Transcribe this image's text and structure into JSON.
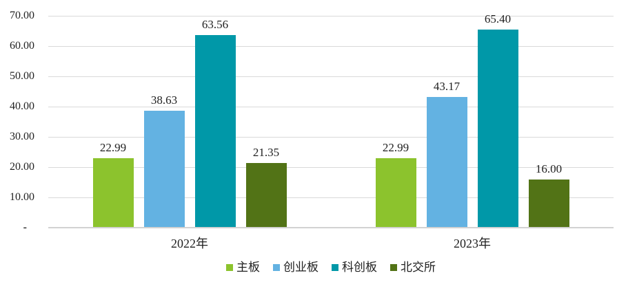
{
  "chart_data": {
    "type": "bar",
    "title": "",
    "xlabel": "",
    "ylabel": "",
    "categories": [
      "2022年",
      "2023年"
    ],
    "series": [
      {
        "name": "主板",
        "color": "#8CC32D",
        "values": [
          22.99,
          22.99
        ],
        "labels": [
          "22.99",
          "22.99"
        ]
      },
      {
        "name": "创业板",
        "color": "#63B2E2",
        "values": [
          38.63,
          43.17
        ],
        "labels": [
          "38.63",
          "43.17"
        ]
      },
      {
        "name": "科创板",
        "color": "#0098A8",
        "values": [
          63.56,
          65.4
        ],
        "labels": [
          "63.56",
          "65.40"
        ]
      },
      {
        "name": "北交所",
        "color": "#527316",
        "values": [
          21.35,
          16.0
        ],
        "labels": [
          "21.35",
          "16.00"
        ]
      }
    ],
    "ylim": [
      0,
      70
    ],
    "ytick_step": 10,
    "ytick_labels": [
      "-",
      "10.00",
      "20.00",
      "30.00",
      "40.00",
      "50.00",
      "60.00",
      "70.00"
    ],
    "grid": true,
    "grid_color": "#d9d9d9",
    "axis_line_color": "#d2d2d2",
    "text_color": "#1f1f1f",
    "legend_position": "bottom",
    "legend_labels": [
      "主板",
      "创业板",
      "科创板",
      "北交所"
    ]
  }
}
